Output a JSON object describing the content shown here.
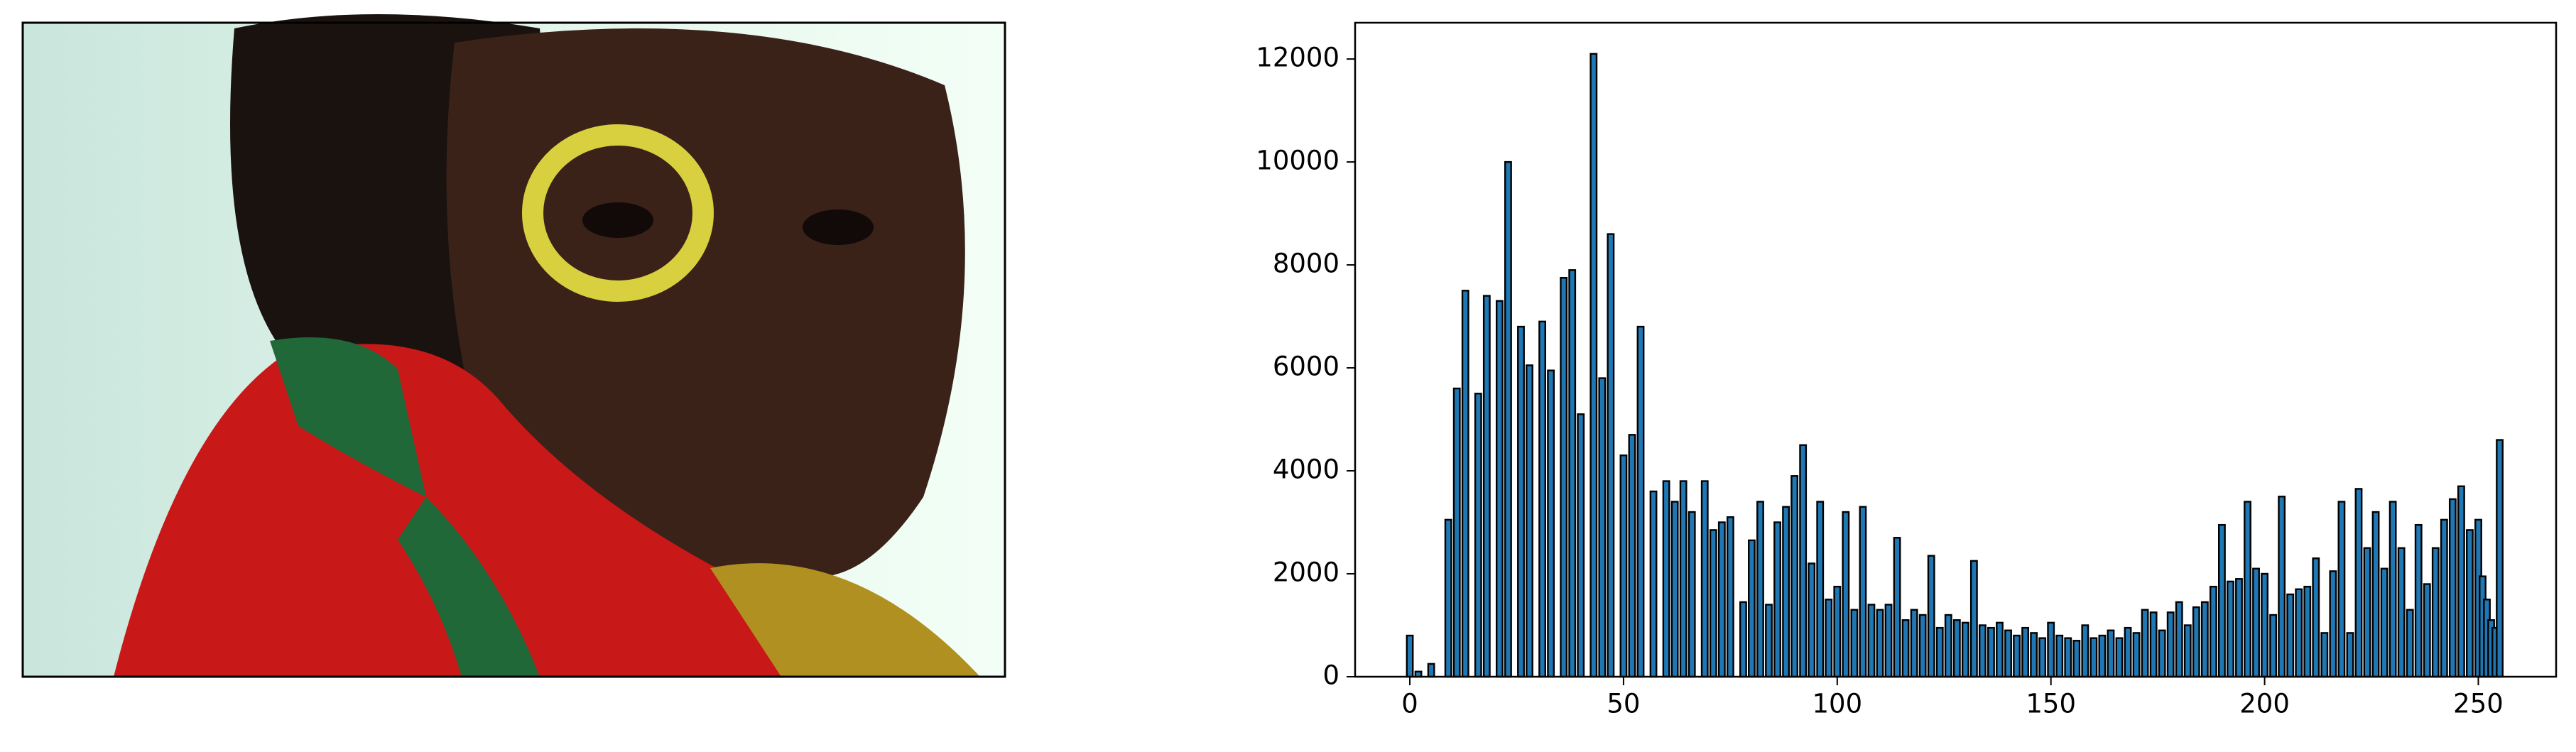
{
  "chart_data": {
    "type": "bar",
    "x": [
      0,
      2,
      5,
      9,
      11,
      13,
      16,
      18,
      21,
      23,
      26,
      28,
      31,
      33,
      36,
      38,
      40,
      43,
      45,
      47,
      50,
      52,
      54,
      57,
      60,
      62,
      64,
      66,
      69,
      71,
      73,
      75,
      78,
      80,
      82,
      84,
      86,
      88,
      90,
      92,
      94,
      96,
      98,
      100,
      102,
      104,
      106,
      108,
      110,
      112,
      114,
      116,
      118,
      120,
      122,
      124,
      126,
      128,
      130,
      132,
      134,
      136,
      138,
      140,
      142,
      144,
      146,
      148,
      150,
      152,
      154,
      156,
      158,
      160,
      162,
      164,
      166,
      168,
      170,
      172,
      174,
      176,
      178,
      180,
      182,
      184,
      186,
      188,
      190,
      192,
      194,
      196,
      198,
      200,
      202,
      204,
      206,
      208,
      210,
      212,
      214,
      216,
      218,
      220,
      222,
      224,
      226,
      228,
      230,
      232,
      234,
      236,
      238,
      240,
      242,
      244,
      246,
      248,
      250,
      251,
      252,
      253,
      254,
      255
    ],
    "values": [
      800,
      100,
      250,
      3050,
      5600,
      7500,
      5500,
      7400,
      7300,
      10000,
      6800,
      6050,
      6900,
      5950,
      7750,
      7900,
      5100,
      12100,
      5800,
      8600,
      4300,
      4700,
      6800,
      3600,
      3800,
      3400,
      3800,
      3200,
      3800,
      2850,
      3000,
      3100,
      1450,
      2650,
      3400,
      1400,
      3000,
      3300,
      3900,
      4500,
      2200,
      3400,
      1500,
      1750,
      3200,
      1300,
      3300,
      1400,
      1300,
      1400,
      2700,
      1100,
      1300,
      1200,
      2350,
      950,
      1200,
      1100,
      1050,
      2250,
      1000,
      950,
      1050,
      900,
      800,
      950,
      850,
      750,
      1050,
      800,
      750,
      700,
      1000,
      750,
      800,
      900,
      750,
      950,
      850,
      1300,
      1250,
      900,
      1250,
      1450,
      1000,
      1350,
      1450,
      1750,
      2950,
      1850,
      1900,
      3400,
      2100,
      2000,
      1200,
      3500,
      1600,
      1700,
      1750,
      2300,
      850,
      2050,
      3400,
      850,
      3650,
      2500,
      3200,
      2100,
      3400,
      2500,
      1300,
      2950,
      1800,
      2500,
      3050,
      3450,
      3700,
      2850,
      3050,
      1950,
      1500,
      1100,
      950,
      4600
    ],
    "color": "#1f77b4",
    "edgecolor": "#000000",
    "xlim": [
      -12.8,
      268.2
    ],
    "ylim": [
      0,
      12705
    ],
    "xticks": [
      0,
      50,
      100,
      150,
      200,
      250
    ],
    "yticks": [
      0,
      2000,
      4000,
      6000,
      8000,
      10000,
      12000
    ]
  }
}
